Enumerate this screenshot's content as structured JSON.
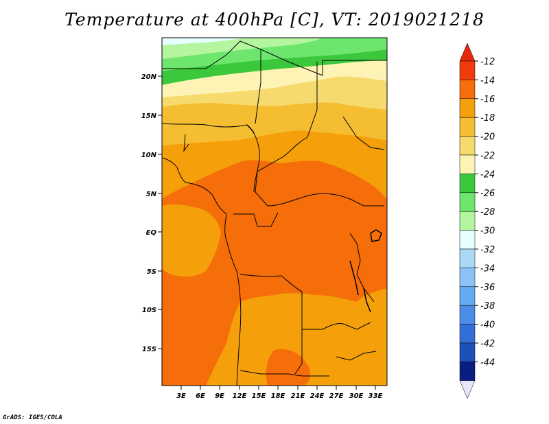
{
  "title": "Temperature at 400hPa [C], VT: 2019021218",
  "credit": "GrADS: IGES/COLA",
  "map": {
    "lat_labels": [
      "20N",
      "15N",
      "10N",
      "5N",
      "EQ",
      "5S",
      "10S",
      "15S"
    ],
    "lon_labels": [
      "3E",
      "6E",
      "9E",
      "12E",
      "15E",
      "18E",
      "21E",
      "24E",
      "27E",
      "30E",
      "33E"
    ]
  },
  "colorbar": {
    "labels": [
      "-12",
      "-14",
      "-16",
      "-18",
      "-20",
      "-22",
      "-24",
      "-26",
      "-28",
      "-30",
      "-32",
      "-34",
      "-36",
      "-38",
      "-40",
      "-42",
      "-44"
    ],
    "colors": [
      "#f03c0a",
      "#f56e0a",
      "#f5a00a",
      "#f5be32",
      "#f7da6e",
      "#fdf3b4",
      "#3cc83c",
      "#6ee66e",
      "#b4f5a0",
      "#e6ffff",
      "#aad8f5",
      "#8cc3f5",
      "#64aaf0",
      "#4b8ce6",
      "#3270d7",
      "#1e50b9",
      "#0a1e82"
    ],
    "top_cap_color": "#e6280a",
    "bottom_cap_color": "#e6e6fa"
  }
}
